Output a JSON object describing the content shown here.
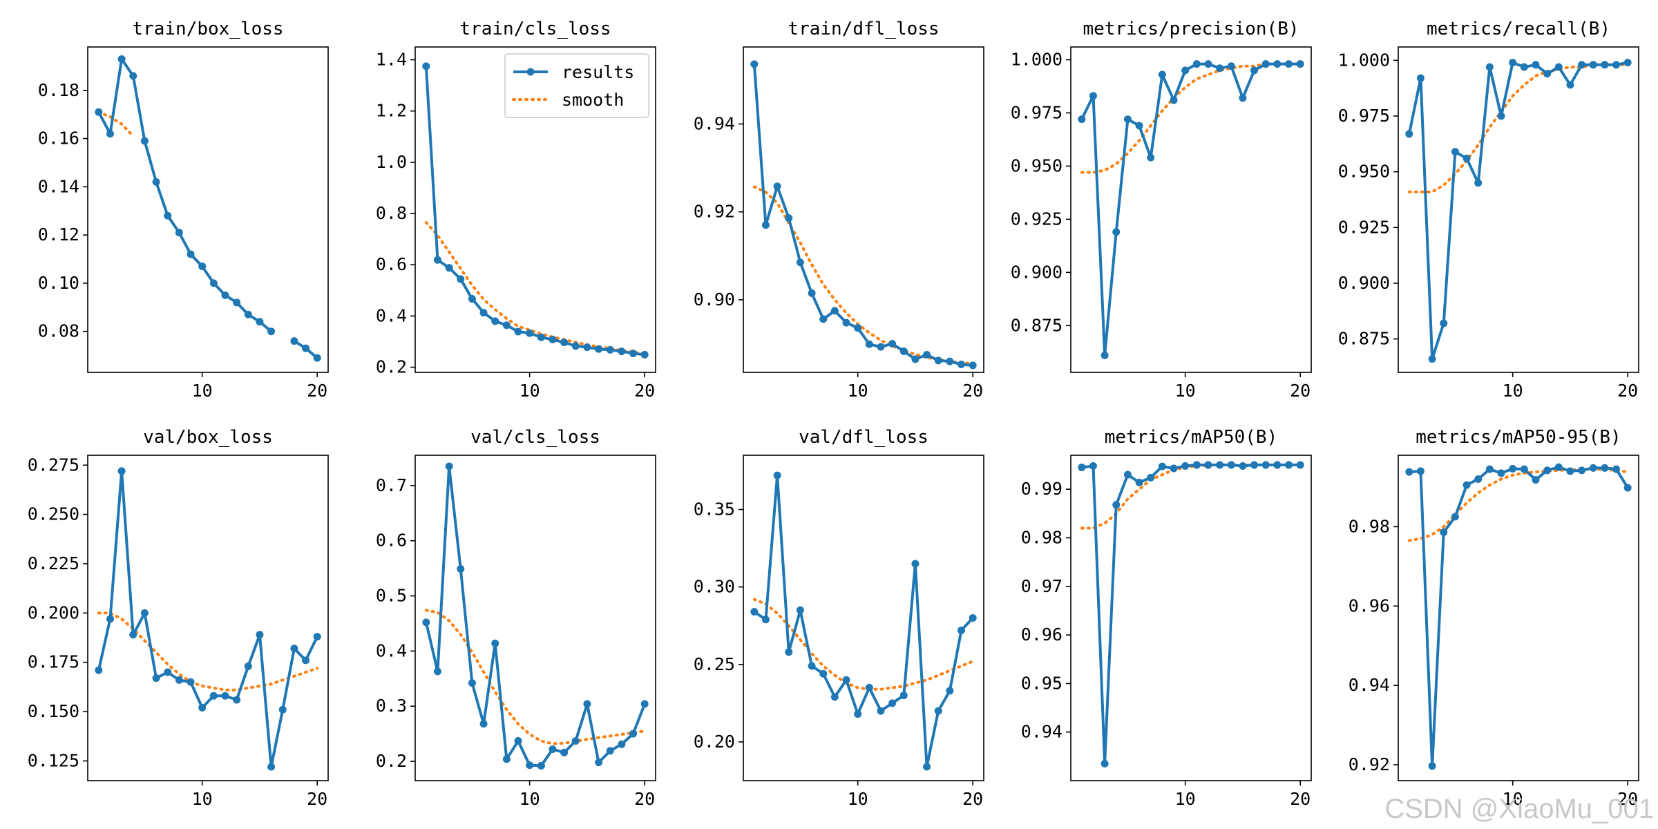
{
  "watermark": "CSDN @XiaoMu_001",
  "colors": {
    "results": "#1f77b4",
    "smooth": "#ff7f0e"
  },
  "legend": {
    "results": "results",
    "smooth": "smooth"
  },
  "chart_data": [
    {
      "type": "line",
      "title": "train/box_loss",
      "xticks": [
        10,
        20
      ],
      "yticks": [
        0.08,
        0.1,
        0.12,
        0.14,
        0.16,
        0.18
      ],
      "ylim": [
        0.063,
        0.198
      ],
      "x": [
        1,
        2,
        3,
        4,
        5,
        6,
        7,
        8,
        9,
        10,
        11,
        12,
        13,
        14,
        15,
        16,
        18,
        19,
        20
      ],
      "results": [
        0.171,
        0.162,
        0.193,
        0.186,
        0.159,
        0.142,
        0.128,
        0.121,
        0.112,
        0.107,
        0.1,
        0.095,
        0.092,
        0.087,
        0.084,
        0.08,
        0.076,
        0.073,
        0.069
      ],
      "smooth_x": [
        1,
        2,
        3,
        4
      ],
      "smooth": [
        0.171,
        0.169,
        0.166,
        0.161
      ]
    },
    {
      "type": "line",
      "title": "train/cls_loss",
      "legend": true,
      "xticks": [
        10,
        20
      ],
      "yticks": [
        0.2,
        0.4,
        0.6,
        0.8,
        1.0,
        1.2,
        1.4
      ],
      "ylim": [
        0.18,
        1.45
      ],
      "x": [
        1,
        2,
        3,
        4,
        5,
        6,
        7,
        8,
        9,
        10,
        11,
        12,
        13,
        14,
        15,
        16,
        17,
        18,
        19,
        20
      ],
      "results": [
        1.375,
        0.619,
        0.588,
        0.544,
        0.467,
        0.413,
        0.38,
        0.364,
        0.339,
        0.333,
        0.317,
        0.308,
        0.297,
        0.283,
        0.278,
        0.271,
        0.268,
        0.262,
        0.254,
        0.249
      ],
      "smooth_x": [
        1,
        2,
        3,
        4,
        5,
        6,
        7,
        8,
        9,
        10,
        11,
        12,
        13,
        14,
        15,
        16,
        17,
        18,
        19,
        20
      ],
      "smooth": [
        0.765,
        0.715,
        0.65,
        0.585,
        0.52,
        0.465,
        0.425,
        0.39,
        0.36,
        0.345,
        0.33,
        0.318,
        0.308,
        0.297,
        0.288,
        0.28,
        0.273,
        0.266,
        0.259,
        0.253
      ]
    },
    {
      "type": "line",
      "title": "train/dfl_loss",
      "xticks": [
        10,
        20
      ],
      "yticks": [
        0.9,
        0.92,
        0.94
      ],
      "ylim": [
        0.8835,
        0.9575
      ],
      "x": [
        1,
        2,
        3,
        4,
        5,
        6,
        7,
        8,
        9,
        10,
        11,
        12,
        13,
        14,
        15,
        16,
        17,
        18,
        19,
        20
      ],
      "results": [
        0.9536,
        0.917,
        0.9258,
        0.9186,
        0.9085,
        0.9015,
        0.8956,
        0.8975,
        0.8948,
        0.8936,
        0.8899,
        0.8893,
        0.89,
        0.8883,
        0.8865,
        0.8875,
        0.8862,
        0.886,
        0.8853,
        0.8851
      ],
      "smooth_x": [
        1,
        2,
        3,
        4,
        5,
        6,
        7,
        8,
        9,
        10,
        11,
        12,
        13,
        14,
        15,
        16,
        17,
        18,
        19,
        20
      ],
      "smooth": [
        0.9257,
        0.9245,
        0.922,
        0.9175,
        0.913,
        0.908,
        0.9035,
        0.9,
        0.897,
        0.8945,
        0.8925,
        0.8908,
        0.8895,
        0.8885,
        0.8876,
        0.8869,
        0.8864,
        0.886,
        0.8857,
        0.8855
      ]
    },
    {
      "type": "line",
      "title": "metrics/precision(B)",
      "xticks": [
        10,
        20
      ],
      "yticks": [
        0.875,
        0.9,
        0.925,
        0.95,
        0.975,
        1.0
      ],
      "ylim": [
        0.853,
        1.006
      ],
      "x": [
        1,
        2,
        3,
        4,
        5,
        6,
        7,
        8,
        9,
        10,
        11,
        12,
        13,
        14,
        15,
        16,
        17,
        18,
        19,
        20
      ],
      "results": [
        0.972,
        0.983,
        0.861,
        0.919,
        0.972,
        0.969,
        0.954,
        0.993,
        0.981,
        0.995,
        0.998,
        0.998,
        0.996,
        0.997,
        0.982,
        0.995,
        0.998,
        0.998,
        0.998,
        0.998
      ],
      "smooth_x": [
        1,
        2,
        3,
        4,
        5,
        6,
        7,
        8,
        9,
        10,
        11,
        12,
        13,
        14,
        15,
        16,
        17,
        18,
        19,
        20
      ],
      "smooth": [
        0.947,
        0.947,
        0.948,
        0.951,
        0.956,
        0.962,
        0.969,
        0.976,
        0.982,
        0.987,
        0.991,
        0.993,
        0.995,
        0.996,
        0.997,
        0.997,
        0.998,
        0.998,
        0.998,
        0.998
      ]
    },
    {
      "type": "line",
      "title": "metrics/recall(B)",
      "xticks": [
        10,
        20
      ],
      "yticks": [
        0.875,
        0.9,
        0.925,
        0.95,
        0.975,
        1.0
      ],
      "ylim": [
        0.86,
        1.006
      ],
      "x": [
        1,
        2,
        3,
        4,
        5,
        6,
        7,
        8,
        9,
        10,
        11,
        12,
        13,
        14,
        15,
        16,
        17,
        18,
        19,
        20
      ],
      "results": [
        0.967,
        0.992,
        0.866,
        0.882,
        0.959,
        0.956,
        0.945,
        0.997,
        0.975,
        0.999,
        0.997,
        0.998,
        0.994,
        0.997,
        0.989,
        0.998,
        0.998,
        0.998,
        0.998,
        0.999
      ],
      "smooth_x": [
        1,
        2,
        3,
        4,
        5,
        6,
        7,
        8,
        9,
        10,
        11,
        12,
        13,
        14,
        15,
        16,
        17,
        18,
        19,
        20
      ],
      "smooth": [
        0.941,
        0.941,
        0.941,
        0.944,
        0.949,
        0.955,
        0.962,
        0.97,
        0.977,
        0.984,
        0.989,
        0.993,
        0.995,
        0.996,
        0.997,
        0.997,
        0.998,
        0.998,
        0.998,
        0.998
      ]
    },
    {
      "type": "line",
      "title": "val/box_loss",
      "xticks": [
        10,
        20
      ],
      "yticks": [
        0.125,
        0.15,
        0.175,
        0.2,
        0.225,
        0.25,
        0.275
      ],
      "ylim": [
        0.115,
        0.28
      ],
      "x": [
        1,
        2,
        3,
        4,
        5,
        6,
        7,
        8,
        9,
        10,
        11,
        12,
        13,
        14,
        15,
        16,
        17,
        18,
        19,
        20
      ],
      "results": [
        0.171,
        0.197,
        0.272,
        0.189,
        0.2,
        0.167,
        0.17,
        0.166,
        0.165,
        0.152,
        0.158,
        0.158,
        0.156,
        0.173,
        0.189,
        0.122,
        0.151,
        0.182,
        0.176,
        0.188
      ],
      "smooth_x": [
        1,
        2,
        3,
        4,
        5,
        6,
        7,
        8,
        9,
        10,
        11,
        12,
        13,
        14,
        15,
        16,
        17,
        18,
        19,
        20
      ],
      "smooth": [
        0.2,
        0.2,
        0.197,
        0.192,
        0.186,
        0.18,
        0.174,
        0.169,
        0.165,
        0.163,
        0.162,
        0.161,
        0.161,
        0.162,
        0.163,
        0.164,
        0.166,
        0.168,
        0.17,
        0.172
      ]
    },
    {
      "type": "line",
      "title": "val/cls_loss",
      "xticks": [
        10,
        20
      ],
      "yticks": [
        0.2,
        0.3,
        0.4,
        0.5,
        0.6,
        0.7
      ],
      "ylim": [
        0.165,
        0.755
      ],
      "x": [
        1,
        2,
        3,
        4,
        5,
        6,
        7,
        8,
        9,
        10,
        11,
        12,
        13,
        14,
        15,
        16,
        17,
        18,
        19,
        20
      ],
      "results": [
        0.452,
        0.363,
        0.735,
        0.549,
        0.342,
        0.268,
        0.414,
        0.204,
        0.237,
        0.193,
        0.192,
        0.222,
        0.216,
        0.237,
        0.304,
        0.198,
        0.219,
        0.231,
        0.25,
        0.304
      ],
      "smooth_x": [
        1,
        2,
        3,
        4,
        5,
        6,
        7,
        8,
        9,
        10,
        11,
        12,
        13,
        14,
        15,
        16,
        17,
        18,
        19,
        20
      ],
      "smooth": [
        0.474,
        0.47,
        0.455,
        0.43,
        0.398,
        0.362,
        0.326,
        0.294,
        0.268,
        0.249,
        0.237,
        0.232,
        0.233,
        0.236,
        0.24,
        0.243,
        0.246,
        0.249,
        0.252,
        0.255
      ]
    },
    {
      "type": "line",
      "title": "val/dfl_loss",
      "xticks": [
        10,
        20
      ],
      "yticks": [
        0.2,
        0.25,
        0.3,
        0.35
      ],
      "ylim": [
        0.175,
        0.385
      ],
      "x": [
        1,
        2,
        3,
        4,
        5,
        6,
        7,
        8,
        9,
        10,
        11,
        12,
        13,
        14,
        15,
        16,
        17,
        18,
        19,
        20
      ],
      "results": [
        0.284,
        0.279,
        0.372,
        0.258,
        0.285,
        0.249,
        0.244,
        0.229,
        0.24,
        0.218,
        0.235,
        0.22,
        0.225,
        0.23,
        0.315,
        0.184,
        0.22,
        0.233,
        0.272,
        0.28
      ],
      "smooth_x": [
        1,
        2,
        3,
        4,
        5,
        6,
        7,
        8,
        9,
        10,
        11,
        12,
        13,
        14,
        15,
        16,
        17,
        18,
        19,
        20
      ],
      "smooth": [
        0.292,
        0.289,
        0.283,
        0.275,
        0.266,
        0.257,
        0.249,
        0.243,
        0.238,
        0.235,
        0.234,
        0.234,
        0.235,
        0.236,
        0.238,
        0.24,
        0.243,
        0.246,
        0.249,
        0.252
      ]
    },
    {
      "type": "line",
      "title": "metrics/mAP50(B)",
      "xticks": [
        10,
        20
      ],
      "yticks": [
        0.94,
        0.95,
        0.96,
        0.97,
        0.98,
        0.99
      ],
      "ylim": [
        0.93,
        0.997
      ],
      "x": [
        1,
        2,
        3,
        4,
        5,
        6,
        7,
        8,
        9,
        10,
        11,
        12,
        13,
        14,
        15,
        16,
        17,
        18,
        19,
        20
      ],
      "results": [
        0.9945,
        0.9948,
        0.9335,
        0.9868,
        0.993,
        0.9914,
        0.9924,
        0.9947,
        0.9943,
        0.9948,
        0.995,
        0.995,
        0.995,
        0.995,
        0.9948,
        0.995,
        0.995,
        0.995,
        0.995,
        0.995
      ],
      "smooth_x": [
        1,
        2,
        3,
        4,
        5,
        6,
        7,
        8,
        9,
        10,
        11,
        12,
        13,
        14,
        15,
        16,
        17,
        18,
        19,
        20
      ],
      "smooth": [
        0.982,
        0.982,
        0.983,
        0.985,
        0.988,
        0.99,
        0.992,
        0.993,
        0.994,
        0.9945,
        0.9948,
        0.9949,
        0.995,
        0.995,
        0.995,
        0.995,
        0.995,
        0.995,
        0.995,
        0.995
      ]
    },
    {
      "type": "line",
      "title": "metrics/mAP50-95(B)",
      "xticks": [
        10,
        20
      ],
      "yticks": [
        0.92,
        0.94,
        0.96,
        0.98
      ],
      "ylim": [
        0.916,
        0.998
      ],
      "x": [
        1,
        2,
        3,
        4,
        5,
        6,
        7,
        8,
        9,
        10,
        11,
        12,
        13,
        14,
        15,
        16,
        17,
        18,
        19,
        20
      ],
      "results": [
        0.9938,
        0.994,
        0.9197,
        0.9786,
        0.9825,
        0.9905,
        0.992,
        0.9945,
        0.9935,
        0.9946,
        0.9945,
        0.9918,
        0.9942,
        0.995,
        0.994,
        0.9942,
        0.9948,
        0.9948,
        0.9945,
        0.9898
      ],
      "smooth_x": [
        1,
        2,
        3,
        4,
        5,
        6,
        7,
        8,
        9,
        10,
        11,
        12,
        13,
        14,
        15,
        16,
        17,
        18,
        19,
        20
      ],
      "smooth": [
        0.9765,
        0.977,
        0.978,
        0.98,
        0.983,
        0.986,
        0.9885,
        0.9905,
        0.992,
        0.993,
        0.9935,
        0.9938,
        0.994,
        0.9942,
        0.9943,
        0.9944,
        0.9945,
        0.9944,
        0.9942,
        0.9938
      ]
    }
  ]
}
